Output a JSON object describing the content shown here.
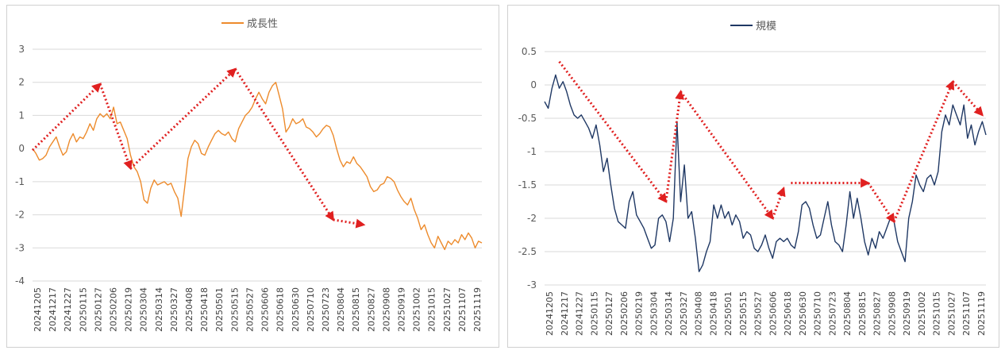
{
  "chart_data": [
    {
      "type": "line",
      "series_name": "成長性",
      "color": "#ED8B2C",
      "arrow_color": "#E02020",
      "ylim": [
        -4,
        3
      ],
      "yticks": [
        -4,
        -3,
        -2,
        -1,
        0,
        1,
        2,
        3
      ],
      "grid": true,
      "legend": "top-center",
      "xticks": [
        "20241205",
        "20241217",
        "20241227",
        "20250115",
        "20250127",
        "20250206",
        "20250219",
        "20250304",
        "20250314",
        "20250327",
        "20250408",
        "20250418",
        "20250501",
        "20250515",
        "20250527",
        "20250606",
        "20250618",
        "20250630",
        "20250710",
        "20250723",
        "20250804",
        "20250815",
        "20250827",
        "20250908",
        "20250919",
        "20251002",
        "20251015",
        "20251027",
        "20251107",
        "20251119"
      ],
      "series": [
        0.0,
        -0.15,
        -0.35,
        -0.3,
        -0.2,
        0.05,
        0.2,
        0.35,
        0.05,
        -0.2,
        -0.1,
        0.25,
        0.45,
        0.2,
        0.35,
        0.3,
        0.5,
        0.75,
        0.55,
        0.9,
        1.05,
        0.95,
        1.05,
        0.9,
        1.25,
        0.75,
        0.8,
        0.55,
        0.3,
        -0.2,
        -0.55,
        -0.7,
        -1.0,
        -1.55,
        -1.65,
        -1.2,
        -0.95,
        -1.1,
        -1.05,
        -1.0,
        -1.1,
        -1.05,
        -1.3,
        -1.5,
        -2.05,
        -1.2,
        -0.3,
        0.05,
        0.25,
        0.15,
        -0.15,
        -0.2,
        0.05,
        0.25,
        0.45,
        0.55,
        0.45,
        0.4,
        0.5,
        0.3,
        0.2,
        0.6,
        0.8,
        1.0,
        1.1,
        1.25,
        1.5,
        1.7,
        1.5,
        1.35,
        1.7,
        1.9,
        2.0,
        1.6,
        1.2,
        0.5,
        0.65,
        0.9,
        0.75,
        0.8,
        0.9,
        0.65,
        0.6,
        0.5,
        0.35,
        0.45,
        0.6,
        0.7,
        0.65,
        0.4,
        0.0,
        -0.35,
        -0.55,
        -0.4,
        -0.45,
        -0.25,
        -0.45,
        -0.55,
        -0.7,
        -0.85,
        -1.15,
        -1.3,
        -1.25,
        -1.1,
        -1.05,
        -0.85,
        -0.9,
        -1.0,
        -1.25,
        -1.45,
        -1.6,
        -1.7,
        -1.5,
        -1.85,
        -2.1,
        -2.45,
        -2.3,
        -2.6,
        -2.85,
        -3.0,
        -2.65,
        -2.85,
        -3.05,
        -2.8,
        -2.9,
        -2.75,
        -2.85,
        -2.6,
        -2.75,
        -2.55,
        -2.7,
        -3.0,
        -2.8,
        -2.85
      ],
      "trend_arrows": [
        [
          [
            0,
            -0.05
          ],
          [
            20,
            1.95
          ]
        ],
        [
          [
            20,
            1.95
          ],
          [
            29,
            -0.6
          ]
        ],
        [
          [
            29,
            -0.6
          ],
          [
            60,
            2.4
          ]
        ],
        [
          [
            60,
            2.4
          ],
          [
            89,
            -2.15
          ]
        ],
        [
          [
            89,
            -2.15
          ],
          [
            98,
            -2.3
          ]
        ]
      ]
    },
    {
      "type": "line",
      "series_name": "規模",
      "color": "#1F3864",
      "arrow_color": "#E02020",
      "ylim": [
        -3,
        0.5
      ],
      "yticks": [
        -3,
        -2.5,
        -2,
        -1.5,
        -1,
        -0.5,
        0,
        0.5
      ],
      "grid": true,
      "legend": "top-center",
      "xticks": [
        "20241205",
        "20241217",
        "20241227",
        "20250115",
        "20250127",
        "20250206",
        "20250219",
        "20250304",
        "20250314",
        "20250327",
        "20250408",
        "20250418",
        "20250501",
        "20250515",
        "20250527",
        "20250606",
        "20250618",
        "20250630",
        "20250710",
        "20250723",
        "20250804",
        "20250815",
        "20250827",
        "20250908",
        "20250919",
        "20251002",
        "20251015",
        "20251027",
        "20251107",
        "20251119"
      ],
      "series": [
        -0.25,
        -0.35,
        -0.05,
        0.15,
        -0.05,
        0.05,
        -0.1,
        -0.3,
        -0.45,
        -0.5,
        -0.45,
        -0.55,
        -0.65,
        -0.8,
        -0.6,
        -0.9,
        -1.3,
        -1.1,
        -1.5,
        -1.85,
        -2.05,
        -2.1,
        -2.15,
        -1.75,
        -1.6,
        -1.95,
        -2.05,
        -2.15,
        -2.3,
        -2.45,
        -2.4,
        -2.0,
        -1.95,
        -2.05,
        -2.35,
        -2.0,
        -0.55,
        -1.75,
        -1.2,
        -2.0,
        -1.9,
        -2.3,
        -2.8,
        -2.7,
        -2.5,
        -2.35,
        -1.8,
        -2.0,
        -1.8,
        -2.0,
        -1.9,
        -2.1,
        -1.95,
        -2.05,
        -2.3,
        -2.2,
        -2.25,
        -2.45,
        -2.5,
        -2.4,
        -2.25,
        -2.45,
        -2.6,
        -2.35,
        -2.3,
        -2.35,
        -2.3,
        -2.4,
        -2.45,
        -2.2,
        -1.8,
        -1.75,
        -1.85,
        -2.1,
        -2.3,
        -2.25,
        -2.0,
        -1.75,
        -2.1,
        -2.35,
        -2.4,
        -2.5,
        -2.1,
        -1.6,
        -2.0,
        -1.7,
        -2.0,
        -2.35,
        -2.55,
        -2.3,
        -2.45,
        -2.2,
        -2.3,
        -2.15,
        -2.0,
        -2.05,
        -2.35,
        -2.5,
        -2.65,
        -2.0,
        -1.75,
        -1.35,
        -1.5,
        -1.6,
        -1.4,
        -1.35,
        -1.5,
        -1.3,
        -0.7,
        -0.45,
        -0.6,
        -0.3,
        -0.45,
        -0.6,
        -0.3,
        -0.8,
        -0.6,
        -0.9,
        -0.7,
        -0.55,
        -0.75
      ],
      "trend_arrows": [
        [
          [
            4,
            0.35
          ],
          [
            33,
            -1.75
          ]
        ],
        [
          [
            33,
            -1.75
          ],
          [
            37,
            -0.1
          ]
        ],
        [
          [
            37,
            -0.1
          ],
          [
            62,
            -2.0
          ]
        ],
        [
          [
            62,
            -2.0
          ],
          [
            65,
            -1.55
          ]
        ],
        [
          [
            67,
            -1.47
          ],
          [
            88,
            -1.47
          ]
        ],
        [
          [
            88,
            -1.47
          ],
          [
            95,
            -2.05
          ]
        ],
        [
          [
            95,
            -2.05
          ],
          [
            111,
            0.05
          ]
        ],
        [
          [
            111,
            0.05
          ],
          [
            119,
            -0.45
          ]
        ]
      ]
    }
  ]
}
